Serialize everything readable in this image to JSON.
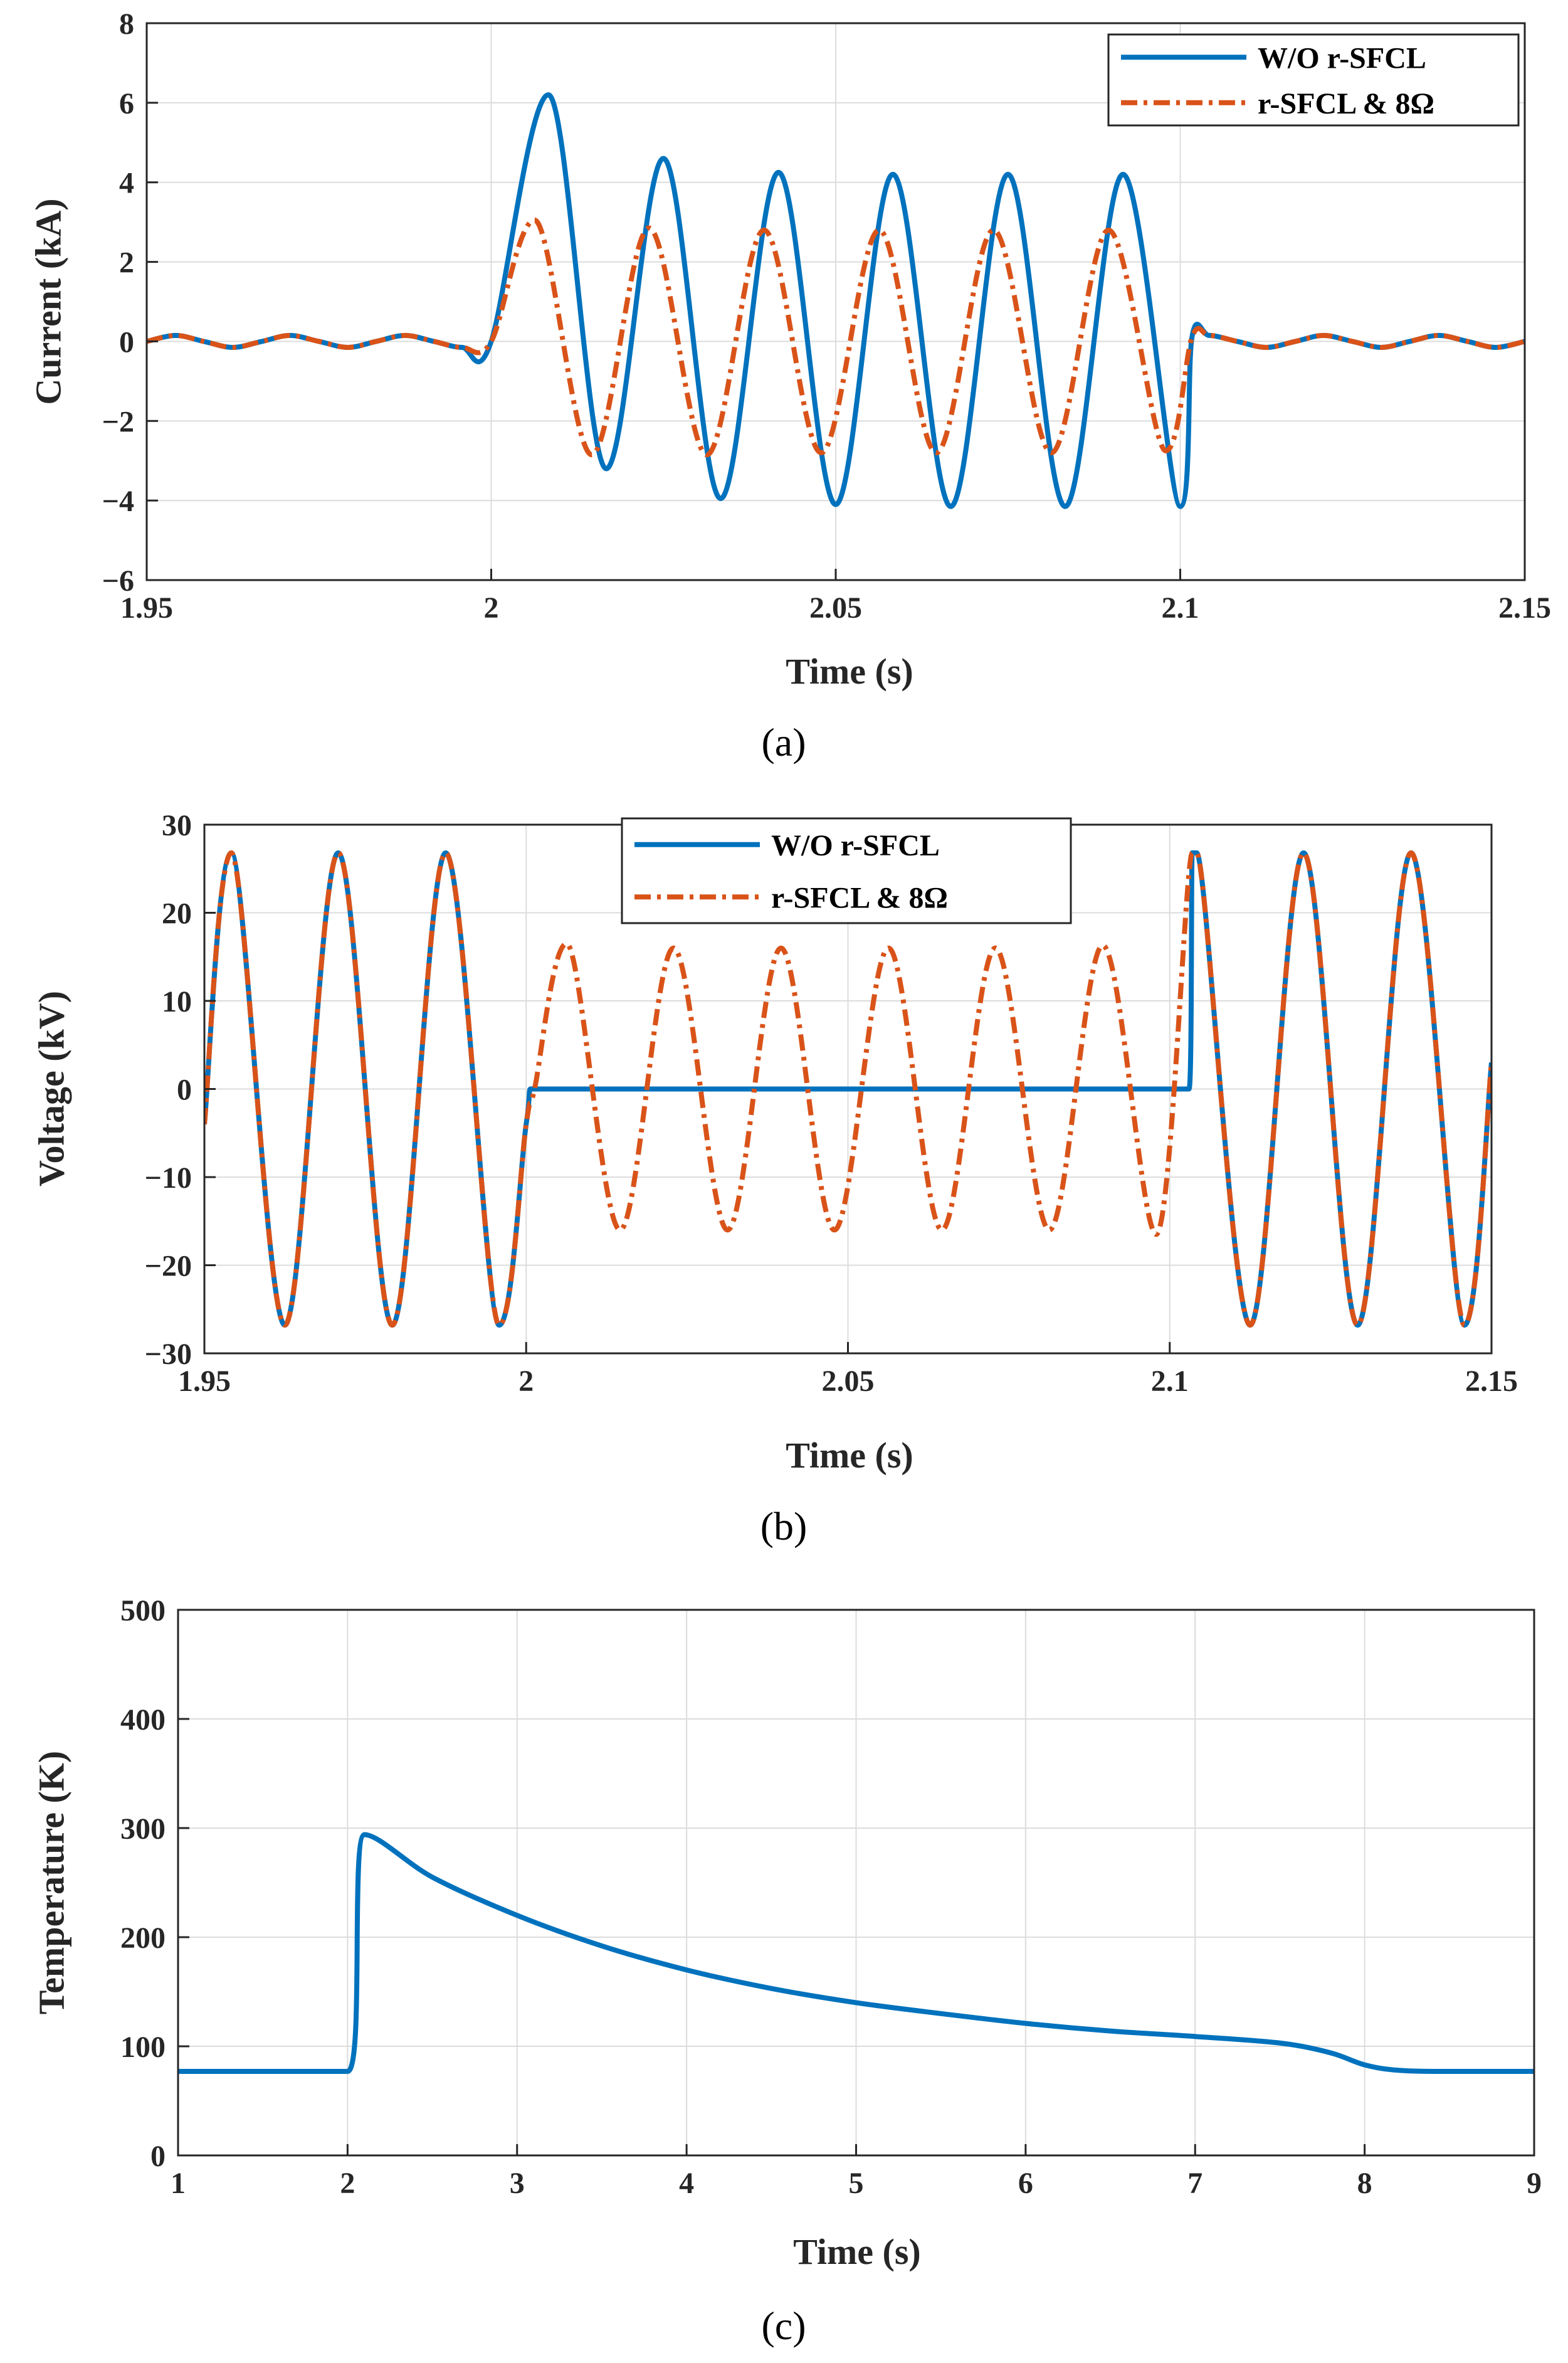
{
  "colors": {
    "blue": "#0072BD",
    "orange": "#D95319"
  },
  "chart_data": [
    {
      "type": "line",
      "panel": "a",
      "caption": "(a)",
      "xlabel": "Time (s)",
      "ylabel": "Current (kA)",
      "xlim": [
        1.95,
        2.15
      ],
      "ylim": [
        -6,
        8
      ],
      "xticks": [
        1.95,
        2,
        2.05,
        2.1,
        2.15
      ],
      "xtick_labels": [
        "1.95",
        "2",
        "2.05",
        "2.1",
        "2.15"
      ],
      "yticks": [
        -6,
        -4,
        -2,
        0,
        2,
        4,
        6,
        8
      ],
      "ytick_labels": [
        "−6",
        "−4",
        "−2",
        "0",
        "2",
        "4",
        "6",
        "8"
      ],
      "legend_position": "top-right",
      "series": [
        {
          "name": "W/O r-SFCL",
          "style": "solid",
          "color": "#0072BD",
          "x": [
            1.95,
            1.9542,
            1.9583,
            1.9625,
            1.9667,
            1.9708,
            1.975,
            1.9792,
            1.9833,
            1.9875,
            1.9917,
            1.9958,
            2.0,
            2.0083,
            2.0167,
            2.025,
            2.0333,
            2.0417,
            2.05,
            2.0583,
            2.0667,
            2.075,
            2.0833,
            2.0917,
            2.1,
            2.1017,
            2.1042,
            2.1083,
            2.1125,
            2.1167,
            2.1208,
            2.125,
            2.1292,
            2.1333,
            2.1375,
            2.1417,
            2.1458,
            2.15
          ],
          "y": [
            0,
            0.15,
            0,
            -0.15,
            0,
            0.15,
            0,
            -0.15,
            0,
            0.15,
            0,
            -0.15,
            0,
            6.2,
            -3.2,
            4.6,
            -3.95,
            4.25,
            -4.1,
            4.2,
            -4.15,
            4.2,
            -4.15,
            4.2,
            -4.15,
            0.1,
            0.15,
            0,
            -0.15,
            0,
            0.15,
            0,
            -0.15,
            0,
            0.15,
            0,
            -0.15,
            0
          ]
        },
        {
          "name": "r-SFCL & 8Ω",
          "style": "dashdot",
          "color": "#D95319",
          "x": [
            1.95,
            1.9542,
            1.9583,
            1.9625,
            1.9667,
            1.9708,
            1.975,
            1.9792,
            1.9833,
            1.9875,
            1.9917,
            1.9958,
            2.0,
            2.0063,
            2.0146,
            2.0229,
            2.0313,
            2.0396,
            2.0479,
            2.0563,
            2.0646,
            2.0729,
            2.0813,
            2.0896,
            2.0979,
            2.1017,
            2.1042,
            2.1083,
            2.1125,
            2.1167,
            2.1208,
            2.125,
            2.1292,
            2.1333,
            2.1375,
            2.1417,
            2.1458,
            2.15
          ],
          "y": [
            0,
            0.15,
            0,
            -0.15,
            0,
            0.15,
            0,
            -0.15,
            0,
            0.15,
            0,
            -0.15,
            0,
            3.05,
            -2.85,
            2.85,
            -2.85,
            2.8,
            -2.8,
            2.8,
            -2.8,
            2.8,
            -2.8,
            2.8,
            -2.75,
            0.1,
            0.15,
            0,
            -0.15,
            0,
            0.15,
            0,
            -0.15,
            0,
            0.15,
            0,
            -0.15,
            0
          ]
        }
      ]
    },
    {
      "type": "line",
      "panel": "b",
      "caption": "(b)",
      "xlabel": "Time (s)",
      "ylabel": "Voltage (kV)",
      "xlim": [
        1.95,
        2.15
      ],
      "ylim": [
        -30,
        30
      ],
      "xticks": [
        1.95,
        2,
        2.05,
        2.1,
        2.15
      ],
      "xtick_labels": [
        "1.95",
        "2",
        "2.05",
        "2.1",
        "2.15"
      ],
      "yticks": [
        -30,
        -20,
        -10,
        0,
        10,
        20,
        30
      ],
      "ytick_labels": [
        "−30",
        "−20",
        "−10",
        "0",
        "10",
        "20",
        "30"
      ],
      "legend_position": "top-center",
      "series": [
        {
          "name": "W/O r-SFCL",
          "style": "solid",
          "color": "#0072BD",
          "x": [
            1.95,
            1.9542,
            1.9625,
            1.9708,
            1.9792,
            1.9875,
            1.9958,
            2.0,
            2.0013,
            2.05,
            2.103,
            2.1035,
            2.1042,
            2.1125,
            2.1208,
            2.1292,
            2.1375,
            2.1458,
            2.15
          ],
          "y": [
            -4,
            26.8,
            -26.8,
            26.8,
            -26.8,
            26.8,
            -26.8,
            -4,
            0,
            0,
            0,
            26.8,
            26.8,
            -26.8,
            26.8,
            -26.8,
            26.8,
            -26.8,
            3
          ]
        },
        {
          "name": "r-SFCL & 8Ω",
          "style": "dashdot",
          "color": "#D95319",
          "x": [
            1.95,
            1.9542,
            1.9625,
            1.9708,
            1.9792,
            1.9875,
            1.9958,
            2.0,
            2.0013,
            2.0063,
            2.0146,
            2.0229,
            2.0313,
            2.0396,
            2.0479,
            2.0563,
            2.0646,
            2.0729,
            2.0813,
            2.0896,
            2.0979,
            2.1035,
            2.1042,
            2.1125,
            2.1208,
            2.1292,
            2.1375,
            2.1458,
            2.15
          ],
          "y": [
            -4,
            26.8,
            -26.8,
            26.8,
            -26.8,
            26.8,
            -26.8,
            -4,
            0,
            16.5,
            -16,
            16,
            -16,
            16,
            -16,
            16,
            -16,
            16,
            -16,
            16.3,
            -16.5,
            26.8,
            26.8,
            -26.8,
            26.8,
            -26.8,
            26.8,
            -26.8,
            3
          ]
        }
      ]
    },
    {
      "type": "line",
      "panel": "c",
      "caption": "(c)",
      "xlabel": "Time (s)",
      "ylabel": "Temperature (K)",
      "xlim": [
        1,
        9
      ],
      "ylim": [
        0,
        500
      ],
      "xticks": [
        1,
        2,
        3,
        4,
        5,
        6,
        7,
        8,
        9
      ],
      "xtick_labels": [
        "1",
        "2",
        "3",
        "4",
        "5",
        "6",
        "7",
        "8",
        "9"
      ],
      "yticks": [
        0,
        100,
        200,
        300,
        400,
        500
      ],
      "ytick_labels": [
        "0",
        "100",
        "200",
        "300",
        "400",
        "500"
      ],
      "series": [
        {
          "name": "Temperature",
          "style": "solid",
          "color": "#0072BD",
          "x": [
            1,
            2,
            2.1,
            2.5,
            3,
            3.5,
            4,
            4.5,
            5,
            5.5,
            6,
            6.5,
            7,
            7.5,
            7.8,
            8,
            8.2,
            8.5,
            9
          ],
          "y": [
            77,
            77,
            294,
            255,
            220,
            192,
            170,
            153,
            140,
            130,
            121,
            114,
            109,
            103,
            94,
            83,
            78,
            77,
            77
          ]
        }
      ]
    }
  ]
}
